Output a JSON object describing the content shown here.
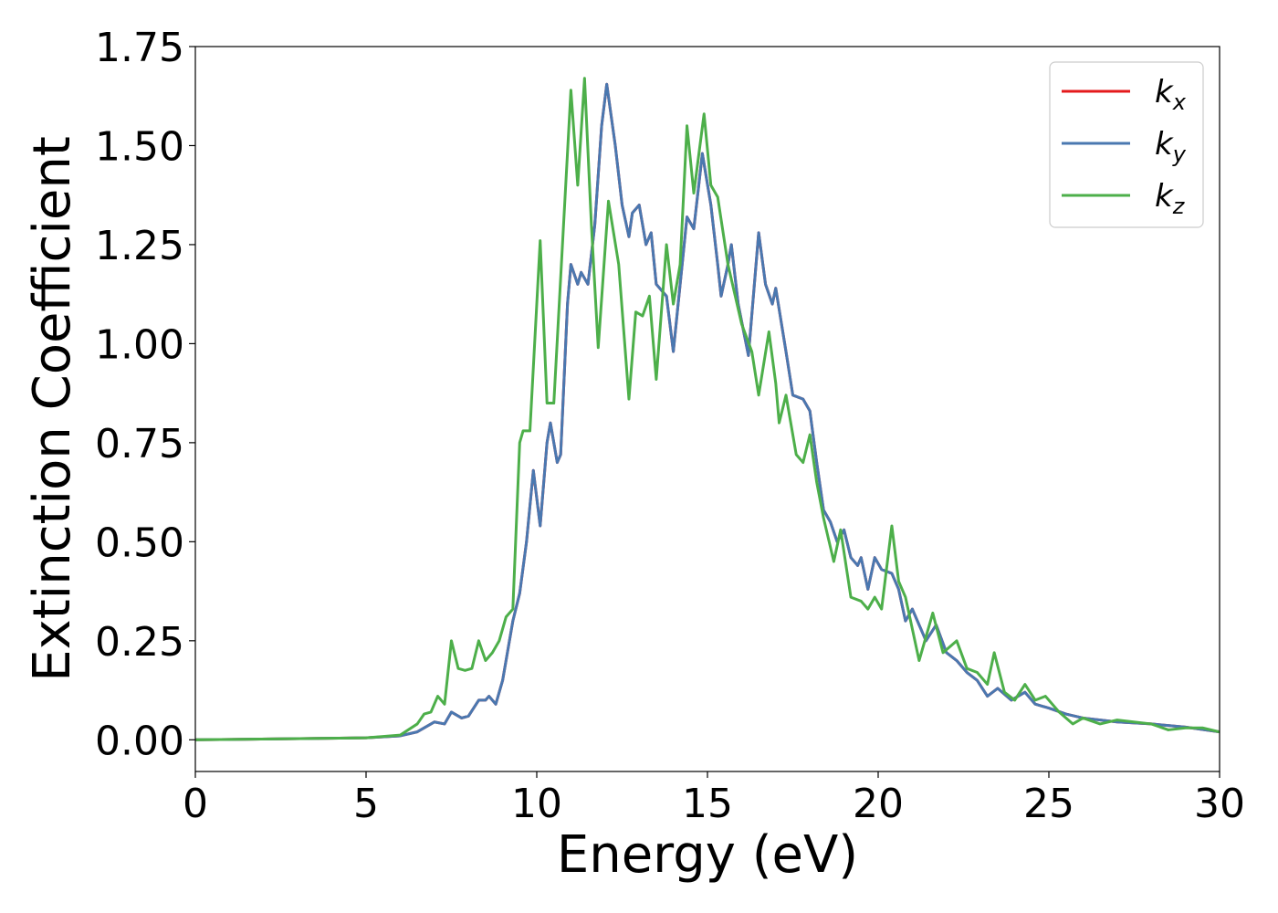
{
  "chart_data": {
    "type": "line",
    "xlabel": "Energy (eV)",
    "ylabel": "Extinction Coefficient",
    "xlim": [
      0,
      30
    ],
    "ylim": [
      -0.08,
      1.75
    ],
    "xticks": [
      0,
      5,
      10,
      15,
      20,
      25,
      30
    ],
    "yticks": [
      {
        "value": 0,
        "label": "0.00"
      },
      {
        "value": 0.25,
        "label": "0.25"
      },
      {
        "value": 0.5,
        "label": "0.50"
      },
      {
        "value": 0.75,
        "label": "0.75"
      },
      {
        "value": 1,
        "label": "1.00"
      },
      {
        "value": 1.25,
        "label": "1.25"
      },
      {
        "value": 1.5,
        "label": "1.50"
      },
      {
        "value": 1.75,
        "label": "1.75"
      }
    ],
    "legend": "upper right",
    "series": [
      {
        "name": "kx",
        "color": "#e41a1c",
        "x": [
          0,
          5,
          6,
          6.5,
          7,
          7.3,
          7.5,
          7.8,
          8,
          8.3,
          8.5,
          8.6,
          8.8,
          9,
          9.3,
          9.5,
          9.7,
          9.9,
          10.1,
          10.3,
          10.4,
          10.6,
          10.7,
          10.9,
          11,
          11.2,
          11.3,
          11.5,
          11.7,
          11.9,
          12.05,
          12.3,
          12.5,
          12.7,
          12.8,
          13,
          13.2,
          13.35,
          13.5,
          13.8,
          14,
          14.2,
          14.4,
          14.6,
          14.85,
          15.1,
          15.3,
          15.4,
          15.6,
          15.7,
          15.9,
          16.2,
          16.5,
          16.7,
          16.9,
          17,
          17.3,
          17.5,
          17.8,
          18,
          18.2,
          18.4,
          18.6,
          18.8,
          19,
          19.2,
          19.4,
          19.5,
          19.7,
          19.9,
          20.1,
          20.4,
          20.6,
          20.8,
          21,
          21.4,
          21.7,
          22,
          22.3,
          22.6,
          22.9,
          23.2,
          23.5,
          23.9,
          24.3,
          24.6,
          25,
          25.5,
          26,
          27,
          28,
          29,
          30
        ],
        "values": [
          0,
          0.005,
          0.01,
          0.02,
          0.045,
          0.04,
          0.07,
          0.055,
          0.06,
          0.1,
          0.1,
          0.11,
          0.09,
          0.15,
          0.3,
          0.37,
          0.5,
          0.68,
          0.54,
          0.75,
          0.8,
          0.7,
          0.72,
          1.1,
          1.2,
          1.15,
          1.18,
          1.15,
          1.3,
          1.55,
          1.655,
          1.5,
          1.35,
          1.27,
          1.33,
          1.35,
          1.25,
          1.28,
          1.15,
          1.12,
          0.98,
          1.15,
          1.32,
          1.29,
          1.48,
          1.35,
          1.2,
          1.12,
          1.2,
          1.25,
          1.1,
          0.97,
          1.28,
          1.15,
          1.1,
          1.14,
          0.98,
          0.87,
          0.86,
          0.83,
          0.7,
          0.58,
          0.55,
          0.5,
          0.53,
          0.46,
          0.44,
          0.46,
          0.38,
          0.46,
          0.43,
          0.42,
          0.38,
          0.3,
          0.33,
          0.25,
          0.29,
          0.22,
          0.2,
          0.17,
          0.15,
          0.11,
          0.13,
          0.1,
          0.12,
          0.09,
          0.08,
          0.065,
          0.055,
          0.045,
          0.04,
          0.032,
          0.02
        ]
      },
      {
        "name": "ky",
        "color": "#4a78b0",
        "x": [
          0,
          5,
          6,
          6.5,
          7,
          7.3,
          7.5,
          7.8,
          8,
          8.3,
          8.5,
          8.6,
          8.8,
          9,
          9.3,
          9.5,
          9.7,
          9.9,
          10.1,
          10.3,
          10.4,
          10.6,
          10.7,
          10.9,
          11,
          11.2,
          11.3,
          11.5,
          11.7,
          11.9,
          12.05,
          12.3,
          12.5,
          12.7,
          12.8,
          13,
          13.2,
          13.35,
          13.5,
          13.8,
          14,
          14.2,
          14.4,
          14.6,
          14.85,
          15.1,
          15.3,
          15.4,
          15.6,
          15.7,
          15.9,
          16.2,
          16.5,
          16.7,
          16.9,
          17,
          17.3,
          17.5,
          17.8,
          18,
          18.2,
          18.4,
          18.6,
          18.8,
          19,
          19.2,
          19.4,
          19.5,
          19.7,
          19.9,
          20.1,
          20.4,
          20.6,
          20.8,
          21,
          21.4,
          21.7,
          22,
          22.3,
          22.6,
          22.9,
          23.2,
          23.5,
          23.9,
          24.3,
          24.6,
          25,
          25.5,
          26,
          27,
          28,
          29,
          30
        ],
        "values": [
          0,
          0.005,
          0.01,
          0.02,
          0.045,
          0.04,
          0.07,
          0.055,
          0.06,
          0.1,
          0.1,
          0.11,
          0.09,
          0.15,
          0.3,
          0.37,
          0.5,
          0.68,
          0.54,
          0.75,
          0.8,
          0.7,
          0.72,
          1.1,
          1.2,
          1.15,
          1.18,
          1.15,
          1.3,
          1.55,
          1.655,
          1.5,
          1.35,
          1.27,
          1.33,
          1.35,
          1.25,
          1.28,
          1.15,
          1.12,
          0.98,
          1.15,
          1.32,
          1.29,
          1.48,
          1.35,
          1.2,
          1.12,
          1.2,
          1.25,
          1.1,
          0.97,
          1.28,
          1.15,
          1.1,
          1.14,
          0.98,
          0.87,
          0.86,
          0.83,
          0.7,
          0.58,
          0.55,
          0.5,
          0.53,
          0.46,
          0.44,
          0.46,
          0.38,
          0.46,
          0.43,
          0.42,
          0.38,
          0.3,
          0.33,
          0.25,
          0.29,
          0.22,
          0.2,
          0.17,
          0.15,
          0.11,
          0.13,
          0.1,
          0.12,
          0.09,
          0.08,
          0.065,
          0.055,
          0.045,
          0.04,
          0.032,
          0.02
        ]
      },
      {
        "name": "kz",
        "color": "#4daf4a",
        "x": [
          0,
          5,
          6,
          6.5,
          6.7,
          6.9,
          7.1,
          7.3,
          7.5,
          7.7,
          7.9,
          8.1,
          8.3,
          8.5,
          8.7,
          8.9,
          9.1,
          9.3,
          9.5,
          9.6,
          9.8,
          10.1,
          10.3,
          10.5,
          11,
          11.2,
          11.4,
          11.6,
          11.8,
          12.1,
          12.4,
          12.7,
          12.9,
          13.1,
          13.3,
          13.5,
          13.8,
          14,
          14.2,
          14.4,
          14.6,
          14.9,
          15.1,
          15.3,
          15.6,
          16,
          16.3,
          16.5,
          16.8,
          17,
          17.1,
          17.3,
          17.6,
          17.8,
          18,
          18.2,
          18.4,
          18.7,
          18.9,
          19.2,
          19.5,
          19.7,
          19.9,
          20.1,
          20.4,
          20.6,
          20.8,
          21.2,
          21.6,
          21.9,
          22.3,
          22.6,
          22.9,
          23.2,
          23.4,
          23.7,
          24,
          24.3,
          24.6,
          24.9,
          25.3,
          25.7,
          26,
          26.5,
          27,
          28,
          28.5,
          29,
          29.5,
          30
        ],
        "values": [
          0,
          0.005,
          0.012,
          0.04,
          0.065,
          0.07,
          0.11,
          0.09,
          0.25,
          0.18,
          0.175,
          0.18,
          0.25,
          0.2,
          0.22,
          0.25,
          0.31,
          0.33,
          0.75,
          0.78,
          0.78,
          1.26,
          0.85,
          0.85,
          1.64,
          1.4,
          1.67,
          1.3,
          0.99,
          1.36,
          1.2,
          0.86,
          1.08,
          1.07,
          1.12,
          0.91,
          1.25,
          1.1,
          1.2,
          1.55,
          1.38,
          1.58,
          1.4,
          1.37,
          1.2,
          1.05,
          0.98,
          0.87,
          1.03,
          0.9,
          0.8,
          0.87,
          0.72,
          0.7,
          0.77,
          0.65,
          0.56,
          0.45,
          0.53,
          0.36,
          0.35,
          0.33,
          0.36,
          0.33,
          0.54,
          0.4,
          0.36,
          0.2,
          0.32,
          0.22,
          0.25,
          0.18,
          0.17,
          0.14,
          0.22,
          0.12,
          0.1,
          0.14,
          0.1,
          0.11,
          0.07,
          0.04,
          0.055,
          0.04,
          0.05,
          0.04,
          0.025,
          0.03,
          0.03,
          0.02
        ]
      }
    ]
  }
}
